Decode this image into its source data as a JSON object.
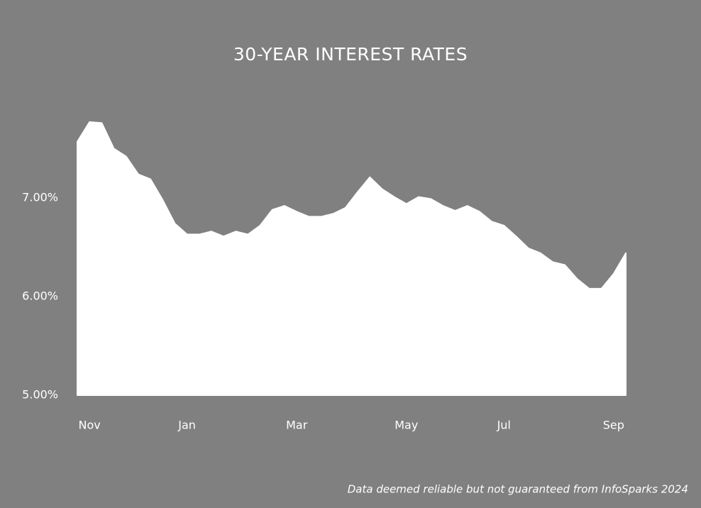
{
  "chart_data": {
    "type": "area",
    "title": "30-YEAR INTEREST RATES",
    "categories": [
      null,
      "Nov",
      null,
      null,
      null,
      null,
      null,
      null,
      null,
      "Jan",
      null,
      null,
      null,
      null,
      null,
      null,
      null,
      null,
      "Mar",
      null,
      null,
      null,
      null,
      null,
      null,
      null,
      null,
      "May",
      null,
      null,
      null,
      null,
      null,
      null,
      null,
      "Jul",
      null,
      null,
      null,
      null,
      null,
      null,
      null,
      null,
      "Sep",
      null
    ],
    "values": [
      7.57,
      7.77,
      7.76,
      7.5,
      7.42,
      7.24,
      7.19,
      6.98,
      6.74,
      6.63,
      6.63,
      6.66,
      6.61,
      6.66,
      6.63,
      6.72,
      6.88,
      6.92,
      6.86,
      6.81,
      6.81,
      6.84,
      6.9,
      7.06,
      7.21,
      7.09,
      7.01,
      6.94,
      7.01,
      6.99,
      6.92,
      6.87,
      6.92,
      6.86,
      6.76,
      6.72,
      6.61,
      6.49,
      6.44,
      6.35,
      6.32,
      6.18,
      6.08,
      6.08,
      6.23,
      6.44
    ],
    "color": "#ffffff",
    "ylim": [
      5,
      8
    ],
    "yticks": [
      {
        "value": 5,
        "label": "5.00%"
      },
      {
        "value": 6,
        "label": "6.00%"
      },
      {
        "value": 7,
        "label": "7.00%"
      }
    ],
    "grid": false,
    "note": "Data deemed reliable but not guaranteed from InfoSparks 2024"
  }
}
